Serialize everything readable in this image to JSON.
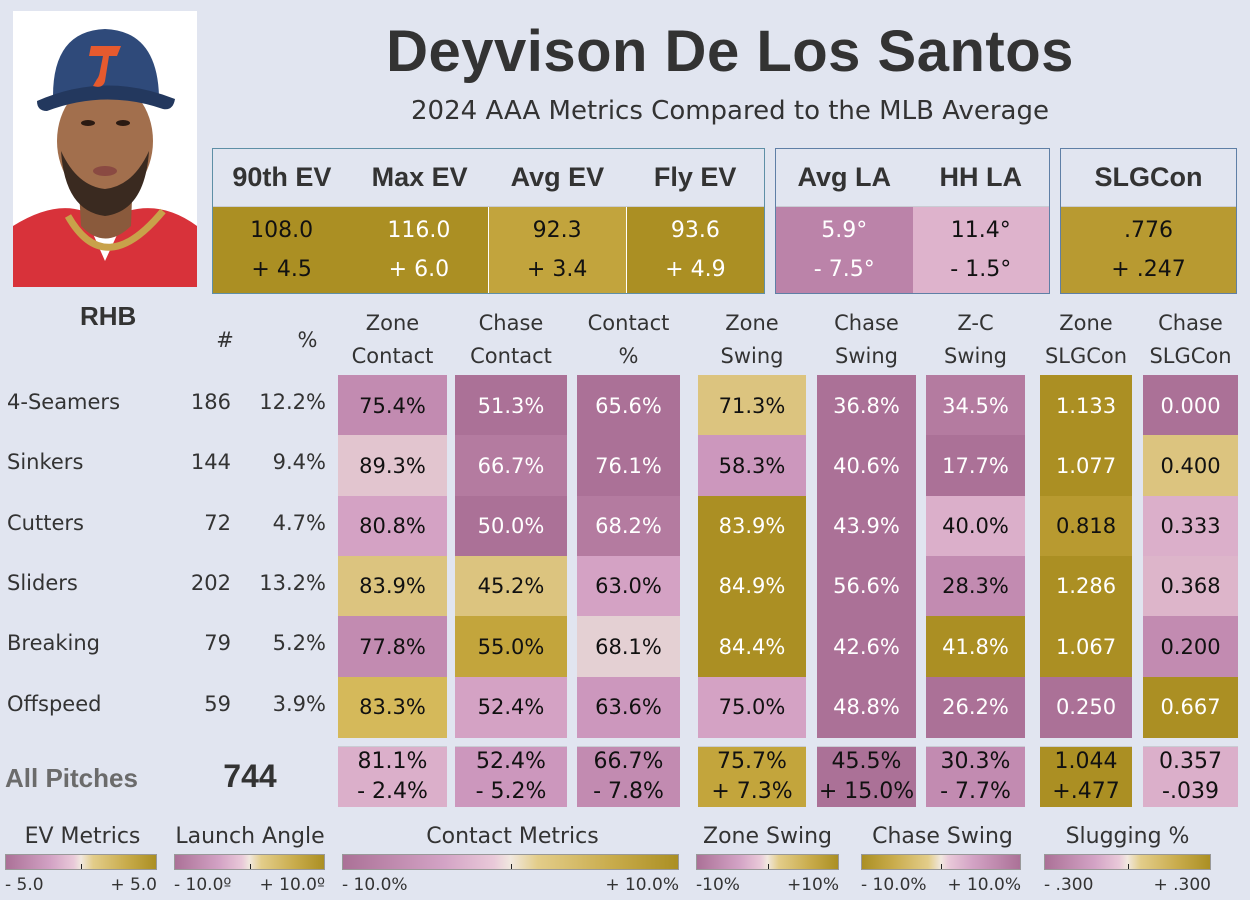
{
  "header": {
    "player_name": "Deyvison De Los Santos",
    "subtitle": "2024 AAA Metrics Compared to the MLB Average",
    "photo": "player-headshot"
  },
  "colors": {
    "background": "#e1e5f0",
    "gold_dark": "#ab8f23",
    "gold_mid": "#c3a33b",
    "gold_light": "#dcc47f",
    "neutral": "#e4d0d6",
    "pink_light": "#dcb2cb",
    "pink_mid": "#c68ab1",
    "purple_dark": "#ab7197",
    "box_border": "#5e8fa6"
  },
  "top_metrics": {
    "ev": [
      {
        "label": "90th EV",
        "value": "108.0",
        "diff": "+ 4.5",
        "tone": "gold_dark",
        "text": "dark"
      },
      {
        "label": "Max EV",
        "value": "116.0",
        "diff": "+ 6.0",
        "tone": "gold_dark",
        "text": "light"
      },
      {
        "label": "Avg EV",
        "value": "92.3",
        "diff": "+ 3.4",
        "tone": "gold_mid",
        "text": "dark"
      },
      {
        "label": "Fly EV",
        "value": "93.6",
        "diff": "+ 4.9",
        "tone": "gold_dark",
        "text": "light"
      }
    ],
    "la": [
      {
        "label": "Avg LA",
        "value": "5.9°",
        "diff": "- 7.5°",
        "tone": "purple_la",
        "text": "light"
      },
      {
        "label": "HH LA",
        "value": "11.4°",
        "diff": "- 1.5°",
        "tone": "pink_light",
        "text": "dark"
      }
    ],
    "slg": [
      {
        "label": "SLGCon",
        "value": ".776",
        "diff": "+ .247",
        "tone": "gold_mid2",
        "text": "dark"
      }
    ]
  },
  "table": {
    "handedness": "RHB",
    "headers": {
      "count": "#",
      "pct": "%",
      "columns": [
        [
          "Zone",
          "Contact"
        ],
        [
          "Chase",
          "Contact"
        ],
        [
          "Contact",
          "%"
        ],
        [
          "Zone",
          "Swing"
        ],
        [
          "Chase",
          "Swing"
        ],
        [
          "Z-C",
          "Swing"
        ],
        [
          "Zone",
          "SLGCon"
        ],
        [
          "Chase",
          "SLGCon"
        ]
      ]
    },
    "rows": [
      {
        "pitch": "4-Seamers",
        "count": "186",
        "pct": "12.2%",
        "cells": [
          [
            "75.4%",
            "c_pink_mid",
            "dark"
          ],
          [
            "51.3%",
            "c_purple",
            "light"
          ],
          [
            "65.6%",
            "c_purple",
            "light"
          ],
          [
            "71.3%",
            "c_gold_light",
            "dark"
          ],
          [
            "36.8%",
            "c_purple",
            "light"
          ],
          [
            "34.5%",
            "c_purple2",
            "light"
          ],
          [
            "1.133",
            "c_gold_dark",
            "light"
          ],
          [
            "0.000",
            "c_purple",
            "light"
          ]
        ]
      },
      {
        "pitch": "Sinkers",
        "count": "144",
        "pct": "9.4%",
        "cells": [
          [
            "89.3%",
            "c_neutral",
            "dark"
          ],
          [
            "66.7%",
            "c_purple2",
            "light"
          ],
          [
            "76.1%",
            "c_purple",
            "light"
          ],
          [
            "58.3%",
            "c_pink_mid2",
            "dark"
          ],
          [
            "40.6%",
            "c_purple",
            "light"
          ],
          [
            "17.7%",
            "c_purple",
            "light"
          ],
          [
            "1.077",
            "c_gold_dark",
            "light"
          ],
          [
            "0.400",
            "c_gold_light",
            "dark"
          ]
        ]
      },
      {
        "pitch": "Cutters",
        "count": "72",
        "pct": "4.7%",
        "cells": [
          [
            "80.8%",
            "c_pink_light2",
            "dark"
          ],
          [
            "50.0%",
            "c_purple",
            "light"
          ],
          [
            "68.2%",
            "c_purple2",
            "light"
          ],
          [
            "83.9%",
            "c_gold_dark",
            "light"
          ],
          [
            "43.9%",
            "c_purple",
            "light"
          ],
          [
            "40.0%",
            "c_pink_light",
            "dark"
          ],
          [
            "0.818",
            "c_gold_mid2",
            "dark"
          ],
          [
            "0.333",
            "c_pink_light",
            "dark"
          ]
        ]
      },
      {
        "pitch": "Sliders",
        "count": "202",
        "pct": "13.2%",
        "cells": [
          [
            "83.9%",
            "c_gold_light",
            "dark"
          ],
          [
            "45.2%",
            "c_gold_light",
            "dark"
          ],
          [
            "63.0%",
            "c_pink_light2",
            "dark"
          ],
          [
            "84.9%",
            "c_gold_dark",
            "light"
          ],
          [
            "56.6%",
            "c_purple",
            "light"
          ],
          [
            "28.3%",
            "c_pink_mid",
            "dark"
          ],
          [
            "1.286",
            "c_gold_dark",
            "light"
          ],
          [
            "0.368",
            "c_pink_light3",
            "dark"
          ]
        ]
      },
      {
        "pitch": "Breaking",
        "count": "79",
        "pct": "5.2%",
        "cells": [
          [
            "77.8%",
            "c_pink_mid",
            "dark"
          ],
          [
            "55.0%",
            "c_gold_mid",
            "dark"
          ],
          [
            "68.1%",
            "c_neutral2",
            "dark"
          ],
          [
            "84.4%",
            "c_gold_dark",
            "light"
          ],
          [
            "42.6%",
            "c_purple",
            "light"
          ],
          [
            "41.8%",
            "c_gold_dark",
            "light"
          ],
          [
            "1.067",
            "c_gold_dark",
            "light"
          ],
          [
            "0.200",
            "c_pink_mid",
            "dark"
          ]
        ]
      },
      {
        "pitch": "Offspeed",
        "count": "59",
        "pct": "3.9%",
        "cells": [
          [
            "83.3%",
            "c_gold_light2",
            "dark"
          ],
          [
            "52.4%",
            "c_pink_light2",
            "dark"
          ],
          [
            "63.6%",
            "c_pink_mid2",
            "dark"
          ],
          [
            "75.0%",
            "c_pink_light2",
            "dark"
          ],
          [
            "48.8%",
            "c_purple",
            "light"
          ],
          [
            "26.2%",
            "c_purple",
            "light"
          ],
          [
            "0.250",
            "c_purple",
            "light"
          ],
          [
            "0.667",
            "c_gold_dark",
            "light"
          ]
        ]
      }
    ],
    "totals": {
      "label": "All Pitches",
      "count": "744",
      "cells": [
        [
          "81.1%",
          "- 2.4%",
          "c_pink_light"
        ],
        [
          "52.4%",
          "- 5.2%",
          "c_pink_mid2"
        ],
        [
          "66.7%",
          "- 7.8%",
          "c_pink_mid"
        ],
        [
          "75.7%",
          "+ 7.3%",
          "c_gold_mid"
        ],
        [
          "45.5%",
          "+ 15.0%",
          "c_purple"
        ],
        [
          "30.3%",
          "- 7.7%",
          "c_pink_mid"
        ],
        [
          "1.044",
          "+.477",
          "c_gold_dark"
        ],
        [
          "0.357",
          "-.039",
          "c_pink_light"
        ]
      ]
    }
  },
  "legends": [
    {
      "title": "EV Metrics",
      "min": "- 5.0",
      "max": "+ 5.0",
      "direction": "purple-to-gold"
    },
    {
      "title": "Launch Angle",
      "min": "- 10.0º",
      "max": "+ 10.0º",
      "direction": "purple-to-gold"
    },
    {
      "title": "Contact Metrics",
      "min": "- 10.0%",
      "max": "+ 10.0%",
      "direction": "purple-to-gold"
    },
    {
      "title": "Zone Swing",
      "min": "-10%",
      "max": "+10%",
      "direction": "purple-to-gold"
    },
    {
      "title": "Chase Swing",
      "min": "- 10.0%",
      "max": "+ 10.0%",
      "direction": "gold-to-purple"
    },
    {
      "title": "Slugging %",
      "min": "- .300",
      "max": "+ .300",
      "direction": "purple-to-gold"
    }
  ],
  "chart_data": {
    "type": "heatmap",
    "title": "Deyvison De Los Santos",
    "subtitle": "2024 AAA Metrics Compared to the MLB Average",
    "summary_metrics": [
      {
        "metric": "90th EV",
        "value": 108.0,
        "diff_vs_mlb": 4.5
      },
      {
        "metric": "Max EV",
        "value": 116.0,
        "diff_vs_mlb": 6.0
      },
      {
        "metric": "Avg EV",
        "value": 92.3,
        "diff_vs_mlb": 3.4
      },
      {
        "metric": "Fly EV",
        "value": 93.6,
        "diff_vs_mlb": 4.9
      },
      {
        "metric": "Avg LA",
        "value": 5.9,
        "diff_vs_mlb": -7.5
      },
      {
        "metric": "HH LA",
        "value": 11.4,
        "diff_vs_mlb": -1.5
      },
      {
        "metric": "SLGCon",
        "value": 0.776,
        "diff_vs_mlb": 0.247
      }
    ],
    "rows": [
      "4-Seamers",
      "Sinkers",
      "Cutters",
      "Sliders",
      "Breaking",
      "Offspeed"
    ],
    "columns": [
      "Zone Contact",
      "Chase Contact",
      "Contact %",
      "Zone Swing",
      "Chase Swing",
      "Z-C Swing",
      "Zone SLGCon",
      "Chase SLGCon"
    ],
    "pitch_counts": [
      186,
      144,
      72,
      202,
      79,
      59
    ],
    "pitch_pcts": [
      12.2,
      9.4,
      4.7,
      13.2,
      5.2,
      3.9
    ],
    "values": [
      [
        75.4,
        51.3,
        65.6,
        71.3,
        36.8,
        34.5,
        1.133,
        0.0
      ],
      [
        89.3,
        66.7,
        76.1,
        58.3,
        40.6,
        17.7,
        1.077,
        0.4
      ],
      [
        80.8,
        50.0,
        68.2,
        83.9,
        43.9,
        40.0,
        0.818,
        0.333
      ],
      [
        83.9,
        45.2,
        63.0,
        84.9,
        56.6,
        28.3,
        1.286,
        0.368
      ],
      [
        77.8,
        55.0,
        68.1,
        84.4,
        42.6,
        41.8,
        1.067,
        0.2
      ],
      [
        83.3,
        52.4,
        63.6,
        75.0,
        48.8,
        26.2,
        0.25,
        0.667
      ]
    ],
    "totals": {
      "count": 744,
      "values": [
        81.1,
        52.4,
        66.7,
        75.7,
        45.5,
        30.3,
        1.044,
        0.357
      ],
      "diff_vs_mlb": [
        -2.4,
        -5.2,
        -7.8,
        7.3,
        15.0,
        -7.7,
        0.477,
        -0.039
      ]
    },
    "color_scales": [
      {
        "name": "EV Metrics",
        "range": [
          -5.0,
          5.0
        ]
      },
      {
        "name": "Launch Angle",
        "range": [
          -10.0,
          10.0
        ]
      },
      {
        "name": "Contact Metrics",
        "range": [
          -10.0,
          10.0
        ]
      },
      {
        "name": "Zone Swing",
        "range": [
          -10,
          10
        ]
      },
      {
        "name": "Chase Swing",
        "range": [
          -10.0,
          10.0
        ],
        "reversed": true
      },
      {
        "name": "Slugging %",
        "range": [
          -0.3,
          0.3
        ]
      }
    ]
  }
}
